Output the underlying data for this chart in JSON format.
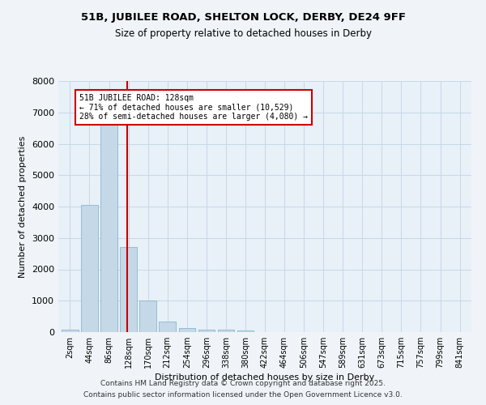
{
  "title1": "51B, JUBILEE ROAD, SHELTON LOCK, DERBY, DE24 9FF",
  "title2": "Size of property relative to detached houses in Derby",
  "xlabel": "Distribution of detached houses by size in Derby",
  "ylabel": "Number of detached properties",
  "categories": [
    "2sqm",
    "44sqm",
    "86sqm",
    "128sqm",
    "170sqm",
    "212sqm",
    "254sqm",
    "296sqm",
    "338sqm",
    "380sqm",
    "422sqm",
    "464sqm",
    "506sqm",
    "547sqm",
    "589sqm",
    "631sqm",
    "673sqm",
    "715sqm",
    "757sqm",
    "799sqm",
    "841sqm"
  ],
  "values": [
    70,
    4050,
    6650,
    2700,
    1000,
    330,
    130,
    90,
    70,
    40,
    0,
    0,
    0,
    0,
    0,
    0,
    0,
    0,
    0,
    0,
    0
  ],
  "bar_color": "#c5d8e8",
  "bar_edge_color": "#7aaec8",
  "highlight_index": 3,
  "vline_color": "#cc0000",
  "annotation_text": "51B JUBILEE ROAD: 128sqm\n← 71% of detached houses are smaller (10,529)\n28% of semi-detached houses are larger (4,080) →",
  "annotation_box_color": "#cc0000",
  "annotation_bg": "#ffffff",
  "ylim": [
    0,
    8000
  ],
  "yticks": [
    0,
    1000,
    2000,
    3000,
    4000,
    5000,
    6000,
    7000,
    8000
  ],
  "grid_color": "#c8d8e8",
  "bg_color": "#e8f0f8",
  "fig_bg_color": "#f0f4f8",
  "footnote1": "Contains HM Land Registry data © Crown copyright and database right 2025.",
  "footnote2": "Contains public sector information licensed under the Open Government Licence v3.0."
}
